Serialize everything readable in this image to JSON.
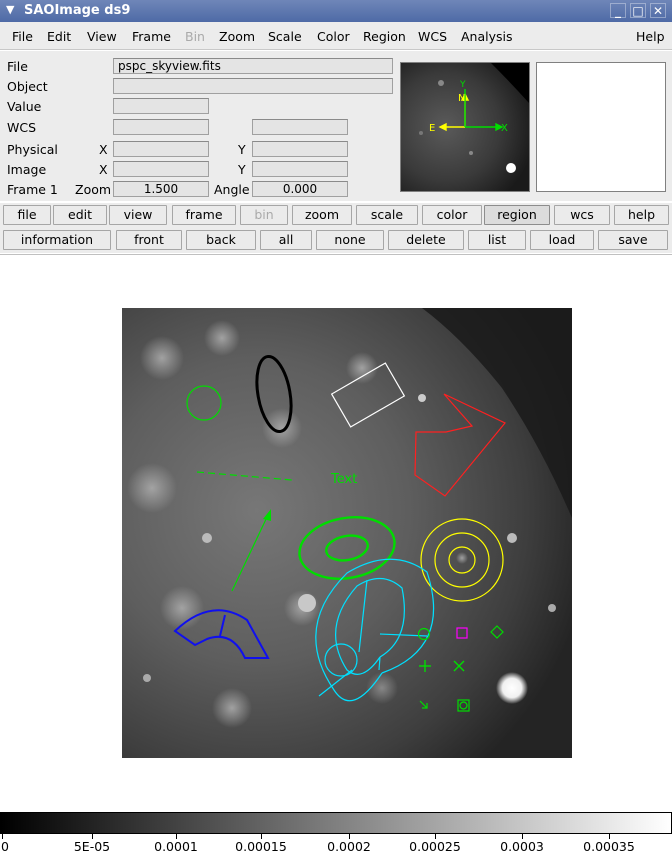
{
  "window": {
    "title": "SAOImage ds9",
    "controls": [
      "_",
      "□",
      "✕"
    ]
  },
  "menubar": {
    "items": [
      {
        "label": "File",
        "disabled": false
      },
      {
        "label": "Edit",
        "disabled": false
      },
      {
        "label": "View",
        "disabled": false
      },
      {
        "label": "Frame",
        "disabled": false
      },
      {
        "label": "Bin",
        "disabled": true
      },
      {
        "label": "Zoom",
        "disabled": false
      },
      {
        "label": "Scale",
        "disabled": false
      },
      {
        "label": "Color",
        "disabled": false
      },
      {
        "label": "Region",
        "disabled": false
      },
      {
        "label": "WCS",
        "disabled": false
      },
      {
        "label": "Analysis",
        "disabled": false
      }
    ],
    "help": "Help"
  },
  "info": {
    "file_label": "File",
    "file_value": "pspc_skyview.fits",
    "object_label": "Object",
    "object_value": "",
    "value_label": "Value",
    "value_value": "",
    "wcs_label": "WCS",
    "wcs_value1": "",
    "wcs_value2": "",
    "physical_label": "Physical",
    "physical_x_label": "X",
    "physical_y_label": "Y",
    "physical_x": "",
    "physical_y": "",
    "image_label": "Image",
    "image_x_label": "X",
    "image_y_label": "Y",
    "image_x": "",
    "image_y": "",
    "frame_label": "Frame 1",
    "zoom_label": "Zoom",
    "zoom_value": "1.500",
    "angle_label": "Angle",
    "angle_value": "0.000"
  },
  "panner": {
    "north": "N",
    "east": "E",
    "y_axis": "Y",
    "x_axis": "X"
  },
  "buttonbar": {
    "main": [
      "file",
      "edit",
      "view",
      "frame",
      "bin",
      "zoom",
      "scale",
      "color",
      "region",
      "wcs",
      "help"
    ],
    "active": "region",
    "disabled": "bin",
    "sub": [
      "information",
      "front",
      "back",
      "all",
      "none",
      "delete",
      "list",
      "load",
      "save"
    ]
  },
  "canvas": {
    "text_region": "Text"
  },
  "colorbar": {
    "labels": [
      "0",
      "5E-05",
      "0.0001",
      "0.00015",
      "0.0002",
      "0.00025",
      "0.0003",
      "0.00035"
    ]
  },
  "colors": {
    "green": "#00dd00",
    "red": "#ff2020",
    "yellow": "#ffff00",
    "cyan": "#00e0ff",
    "blue": "#1010ee",
    "magenta": "#ff00ff",
    "white": "#ffffff",
    "black": "#000000"
  }
}
